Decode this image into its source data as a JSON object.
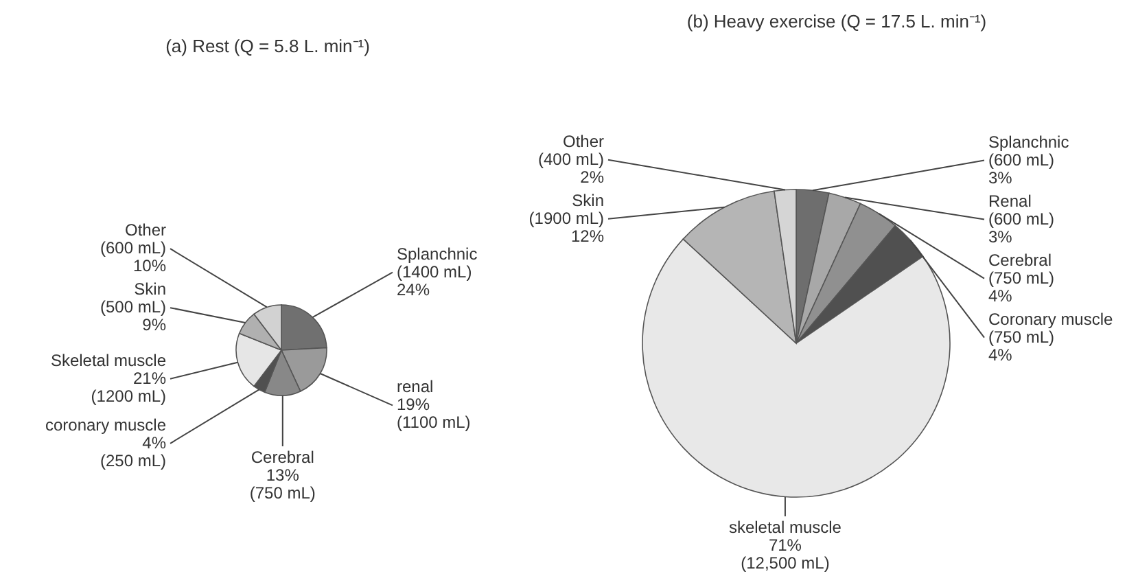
{
  "chart_data": [
    {
      "type": "pie",
      "title": "(a) Rest (Q = 5.8 L. min⁻¹)",
      "categories": [
        "Splanchnic",
        "renal",
        "Cerebral",
        "coronary muscle",
        "Skeletal muscle",
        "Skin",
        "Other"
      ],
      "values": [
        1400,
        1100,
        750,
        250,
        1200,
        500,
        600
      ],
      "value_labels": [
        "(1400 mL)\n24%",
        "19%\n(1100 mL)",
        "13%\n(750 mL)",
        "4%\n(250 mL)",
        "21%\n(1200 mL)",
        "(500 mL)\n9%",
        "(600 mL)\n10%"
      ],
      "colors": [
        "#707070",
        "#9a9a9a",
        "#888888",
        "#505050",
        "#e6e6e6",
        "#b0b0b0",
        "#d2d2d2"
      ]
    },
    {
      "type": "pie",
      "title": "(b) Heavy exercise (Q = 17.5 L. min⁻¹)",
      "categories": [
        "Splanchnic",
        "Renal",
        "Cerebral",
        "Coronary muscle",
        "skeletal muscle",
        "Skin",
        "Other"
      ],
      "values": [
        600,
        600,
        750,
        750,
        12500,
        1900,
        400
      ],
      "value_labels": [
        "(600 mL)\n3%",
        "(600 mL)\n3%",
        "(750 mL)\n4%",
        "(750 mL)\n4%",
        "71%\n(12,500 mL)",
        "(1900 mL)\n12%",
        "(400 mL)\n2%"
      ],
      "colors": [
        "#6e6e6e",
        "#a8a8a8",
        "#909090",
        "#505050",
        "#e8e8e8",
        "#b5b5b5",
        "#d5d5d5"
      ]
    }
  ]
}
